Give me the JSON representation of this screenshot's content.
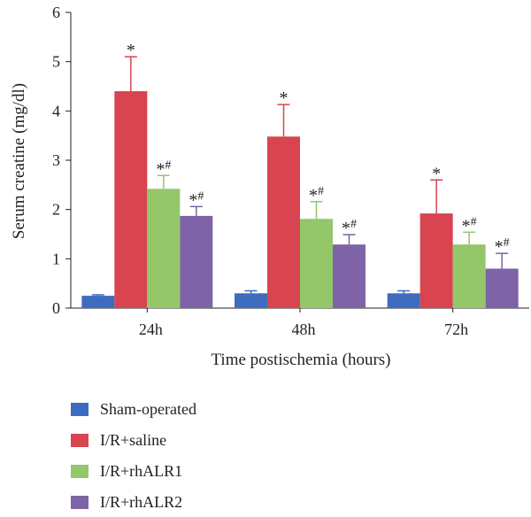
{
  "chart_data": {
    "type": "bar",
    "categories": [
      "24h",
      "48h",
      "72h"
    ],
    "xlabel": "Time postischemia (hours)",
    "ylabel": "Serum creatine (mg/dl)",
    "ylim": [
      0,
      6
    ],
    "yticks": [
      0,
      1,
      2,
      3,
      4,
      5,
      6
    ],
    "grid": false,
    "legend_position": "bottom-left",
    "axis_color": "#231f20",
    "series": [
      {
        "name": "Sham-operated",
        "color": "#3d6cbf",
        "values": [
          0.25,
          0.3,
          0.3
        ],
        "errors": [
          0.02,
          0.05,
          0.05
        ]
      },
      {
        "name": "I/R+saline",
        "color": "#d8444f",
        "values": [
          4.4,
          3.48,
          1.92
        ],
        "errors": [
          0.7,
          0.65,
          0.68
        ],
        "annotations": [
          {
            "mark": "*"
          },
          {
            "mark": "*"
          },
          {
            "mark": "*"
          }
        ]
      },
      {
        "name": "I/R+rhALR1",
        "color": "#93c76a",
        "values": [
          2.42,
          1.81,
          1.29
        ],
        "errors": [
          0.27,
          0.35,
          0.25
        ],
        "annotations": [
          {
            "mark": "*",
            "sup": "#"
          },
          {
            "mark": "*",
            "sup": "#"
          },
          {
            "mark": "*",
            "sup": "#"
          }
        ]
      },
      {
        "name": "I/R+rhALR2",
        "color": "#7e63a7",
        "values": [
          1.87,
          1.29,
          0.8
        ],
        "errors": [
          0.19,
          0.2,
          0.31
        ],
        "annotations": [
          {
            "mark": "*",
            "sup": "#"
          },
          {
            "mark": "*",
            "sup": "#"
          },
          {
            "mark": "*",
            "sup": "#"
          }
        ]
      }
    ]
  }
}
